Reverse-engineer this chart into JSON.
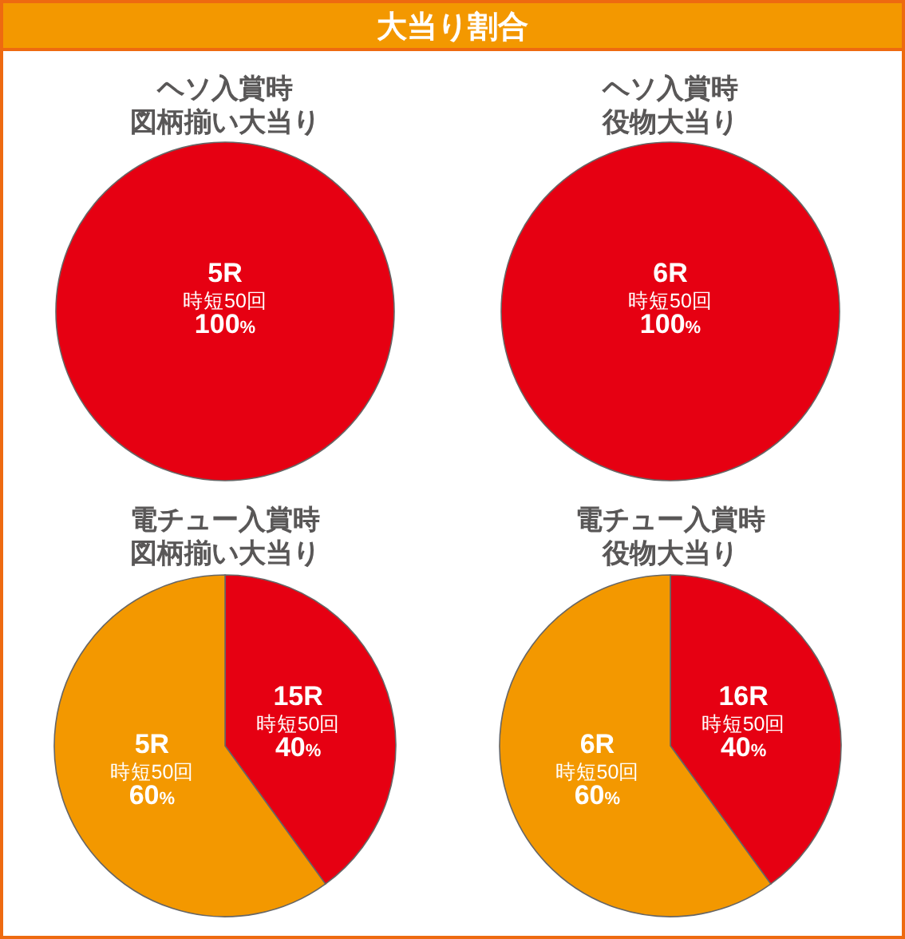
{
  "chart_data": [
    {
      "type": "other",
      "title": "大当り割合"
    },
    {
      "type": "pie",
      "title": "ヘソ入賞時",
      "subtitle": "図柄揃い大当り",
      "categories": [
        "5R\n時短50回"
      ],
      "values": [
        100
      ],
      "colors": [
        "#e60012"
      ],
      "value_labels": [
        "100%"
      ]
    },
    {
      "type": "pie",
      "title": "ヘソ入賞時",
      "subtitle": "役物大当り",
      "categories": [
        "6R\n時短50回"
      ],
      "values": [
        100
      ],
      "colors": [
        "#e60012"
      ],
      "value_labels": [
        "100%"
      ]
    },
    {
      "type": "pie",
      "title": "電チュー入賞時",
      "subtitle": "図柄揃い大当り",
      "categories": [
        "15R\n時短50回",
        "5R\n時短50回"
      ],
      "values": [
        40,
        60
      ],
      "colors": [
        "#e60012",
        "#f39800"
      ],
      "value_labels": [
        "40%",
        "60%"
      ]
    },
    {
      "type": "pie",
      "title": "電チュー入賞時",
      "subtitle": "役物大当り",
      "categories": [
        "16R\n時短50回",
        "6R\n時短50回"
      ],
      "values": [
        40,
        60
      ],
      "colors": [
        "#e60012",
        "#f39800"
      ],
      "value_labels": [
        "40%",
        "60%"
      ]
    }
  ]
}
